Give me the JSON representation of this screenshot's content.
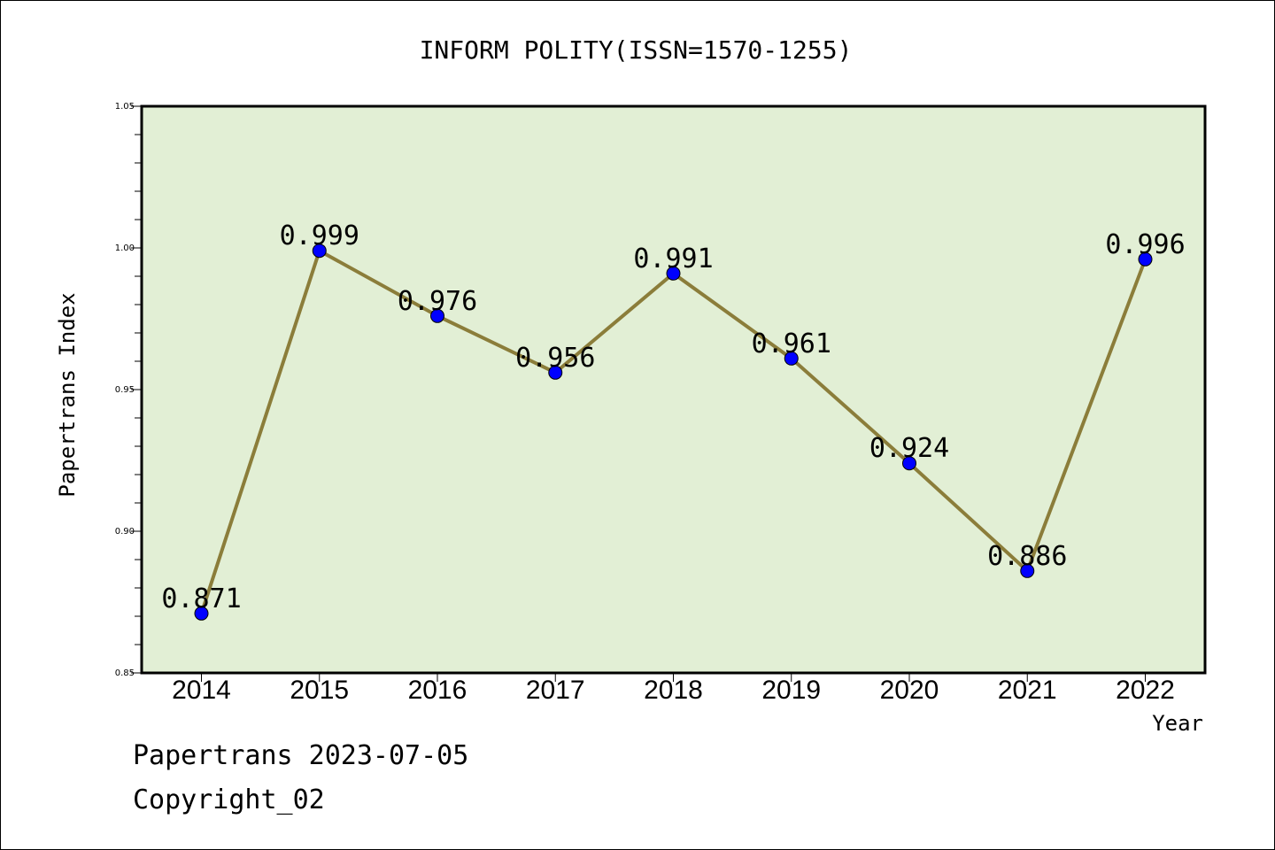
{
  "chart_data": {
    "type": "line",
    "title": "INFORM POLITY(ISSN=1570-1255)",
    "xlabel": "Year",
    "ylabel": "Papertrans Index",
    "x": [
      "2014",
      "2015",
      "2016",
      "2017",
      "2018",
      "2019",
      "2020",
      "2021",
      "2022"
    ],
    "series": [
      {
        "values": [
          0.871,
          0.999,
          0.976,
          0.956,
          0.991,
          0.961,
          0.924,
          0.886,
          0.996
        ],
        "labels": [
          "0.871",
          "0.999",
          "0.976",
          "0.956",
          "0.991",
          "0.961",
          "0.924",
          "0.886",
          "0.996"
        ],
        "line_color": "#8b7d3a",
        "marker_color": "#0000ff"
      }
    ],
    "ylim": [
      0.85,
      1.05
    ],
    "yticks": [
      "0.85",
      "0.90",
      "0.95",
      "1.00",
      "1.05"
    ],
    "plot_background": "#e2efd5",
    "grid": false
  },
  "footer": {
    "line1": "Papertrans 2023-07-05",
    "line2": "Copyright_02"
  }
}
